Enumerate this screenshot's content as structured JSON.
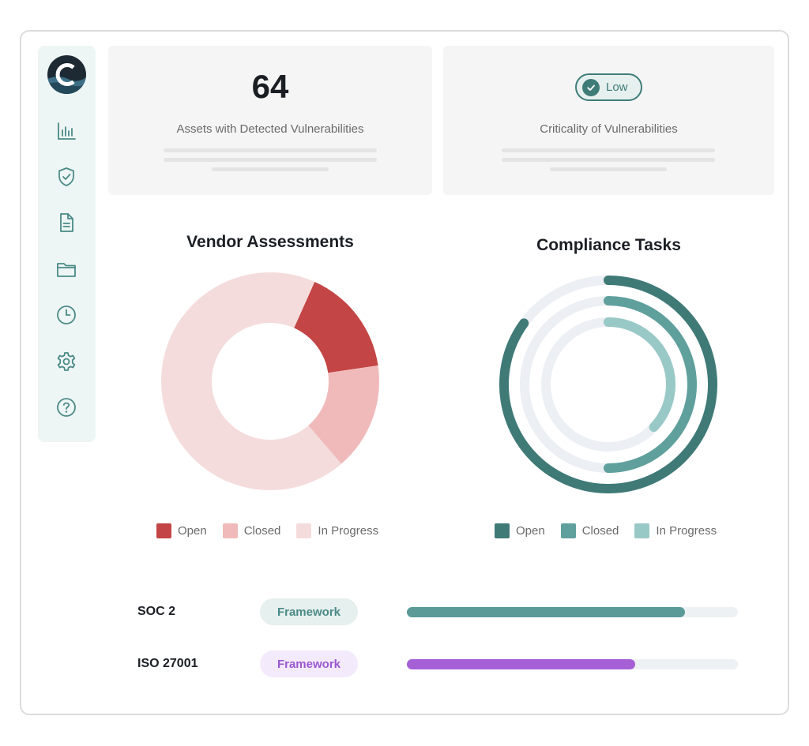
{
  "sidebar": {
    "logo_icon": "brand-logo-icon",
    "items": [
      {
        "icon": "bar-chart-icon"
      },
      {
        "icon": "shield-check-icon"
      },
      {
        "icon": "document-icon"
      },
      {
        "icon": "folder-icon"
      },
      {
        "icon": "clock-icon"
      },
      {
        "icon": "gear-icon"
      },
      {
        "icon": "help-icon"
      }
    ],
    "accent": "#4a8a86"
  },
  "cards": {
    "assets": {
      "value": "64",
      "label": "Assets with Detected Vulnerabilities"
    },
    "criticality": {
      "badge": "Low",
      "label": "Criticality of Vulnerabilities"
    }
  },
  "vendor_assessments": {
    "title": "Vendor Assessments",
    "legend": [
      "Open",
      "Closed",
      "In Progress"
    ],
    "colors": [
      "#c44545",
      "#f0baba",
      "#f5dcdc"
    ]
  },
  "compliance_tasks": {
    "title": "Compliance Tasks",
    "legend": [
      "Open",
      "Closed",
      "In Progress"
    ],
    "colors": [
      "#3f7a77",
      "#5fa09d",
      "#99c9c7"
    ]
  },
  "chart_data": [
    {
      "type": "pie",
      "title": "Vendor Assessments",
      "categories": [
        "Open",
        "Closed",
        "In Progress"
      ],
      "values": [
        16,
        16,
        68
      ]
    },
    {
      "type": "pie",
      "title": "Compliance Tasks",
      "categories": [
        "Open",
        "Closed",
        "In Progress"
      ],
      "values": [
        85,
        50,
        37
      ],
      "unit": "% of ring"
    }
  ],
  "frameworks": [
    {
      "name": "SOC 2",
      "tag": "Framework",
      "progress": 0.84,
      "color": "#5a9b98",
      "pill_bg": "#e6f0ee",
      "pill_fg": "#4a8a86"
    },
    {
      "name": "ISO 27001",
      "tag": "Framework",
      "progress": 0.69,
      "color": "#a660d6",
      "pill_bg": "#f3eafb",
      "pill_fg": "#9b58d0"
    }
  ]
}
